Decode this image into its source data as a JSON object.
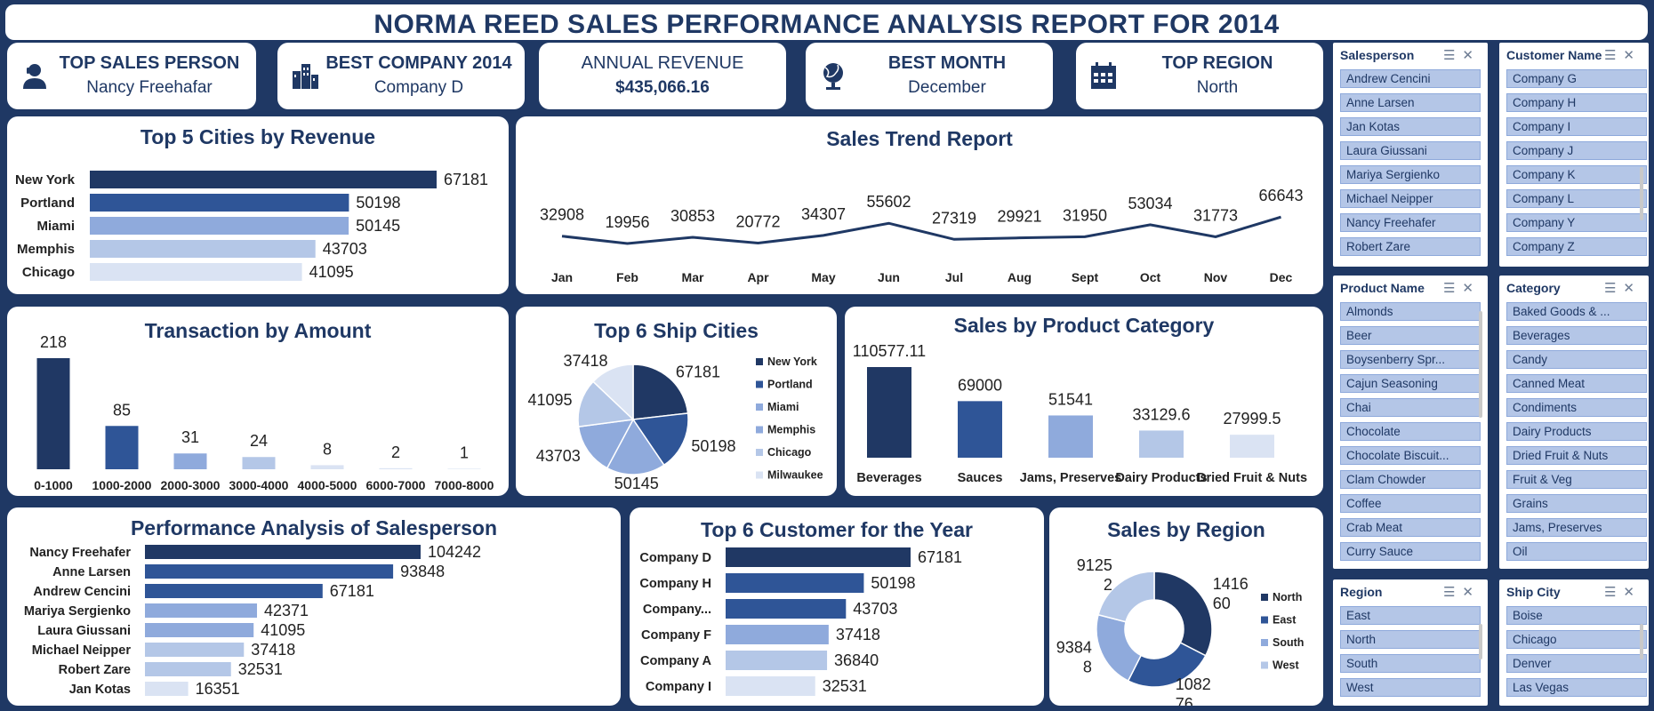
{
  "report_title": "NORMA REED SALES PERFORMANCE ANALYSIS REPORT FOR  2014",
  "kpis": [
    {
      "label": "TOP SALES PERSON",
      "value": "Nancy Freehafar",
      "icon": "person-icon"
    },
    {
      "label": "BEST COMPANY 2014",
      "value": "Company D",
      "icon": "buildings-icon"
    },
    {
      "label": "ANNUAL REVENUE",
      "value": "$435,066.16",
      "icon": ""
    },
    {
      "label": "BEST MONTH",
      "value": "December",
      "icon": "globe-icon"
    },
    {
      "label": "TOP REGION",
      "value": "North",
      "icon": "calendar-icon"
    }
  ],
  "colors": {
    "navy": "#1f3864",
    "s1": "#203864",
    "s2": "#2f5597",
    "s3": "#8faadc",
    "s4": "#b4c7e7",
    "s5": "#dae3f3",
    "slicer_item": "#b4c6e7"
  },
  "chart_data": [
    {
      "id": "cities",
      "type": "bar",
      "orientation": "horizontal",
      "title": "Top 5 Cities by Revenue",
      "categories": [
        "New York",
        "Portland",
        "Miami",
        "Memphis",
        "Chicago"
      ],
      "values": [
        67181,
        50198,
        50145,
        43703,
        41095
      ]
    },
    {
      "id": "trend",
      "type": "line",
      "title": "Sales Trend Report",
      "categories": [
        "Jan",
        "Feb",
        "Mar",
        "Apr",
        "May",
        "Jun",
        "Jul",
        "Aug",
        "Sept",
        "Oct",
        "Nov",
        "Dec"
      ],
      "values": [
        32908,
        19956,
        30853,
        20772,
        34307,
        55602,
        27319,
        29921,
        31950,
        53034,
        31773,
        66643
      ]
    },
    {
      "id": "transactions",
      "type": "bar",
      "title": "Transaction by Amount",
      "categories": [
        "0-1000",
        "1000-2000",
        "2000-3000",
        "3000-4000",
        "4000-5000",
        "6000-7000",
        "7000-8000"
      ],
      "values": [
        218,
        85,
        31,
        24,
        8,
        2,
        1
      ]
    },
    {
      "id": "ship",
      "type": "pie",
      "title": "Top 6 Ship Cities",
      "categories": [
        "New York",
        "Portland",
        "Miami",
        "Memphis",
        "Chicago",
        "Milwaukee"
      ],
      "values": [
        67181,
        50198,
        50145,
        43703,
        41095,
        37418
      ],
      "legend": "right"
    },
    {
      "id": "category",
      "type": "bar",
      "title": "Sales by Product Category",
      "categories": [
        "Beverages",
        "Sauces",
        "Jams, Preserves",
        "Dairy Products",
        "Dried Fruit & Nuts"
      ],
      "values": [
        110577.11,
        69000,
        51541,
        33129.6,
        27999.5
      ]
    },
    {
      "id": "salesperson",
      "type": "bar",
      "orientation": "horizontal",
      "title": "Performance Analysis of Salesperson",
      "categories": [
        "Nancy Freehafer",
        "Anne Larsen",
        "Andrew Cencini",
        "Mariya Sergienko",
        "Laura Giussani",
        "Michael Neipper",
        "Robert Zare",
        "Jan Kotas"
      ],
      "values": [
        104242,
        93848,
        67181,
        42371,
        41095,
        37418,
        32531,
        16351
      ]
    },
    {
      "id": "customers",
      "type": "bar",
      "orientation": "horizontal",
      "title": "Top 6 Customer for the Year",
      "categories": [
        "Company D",
        "Company H",
        "Company...",
        "Company F",
        "Company A",
        "Company I"
      ],
      "values": [
        67181,
        50198,
        43703,
        37418,
        36840,
        32531
      ]
    },
    {
      "id": "region",
      "type": "pie",
      "title": "Sales by Region",
      "categories": [
        "North",
        "East",
        "South",
        "West"
      ],
      "values": [
        141660,
        108276,
        93848,
        91252
      ],
      "value_labels": [
        [
          "1416",
          "60"
        ],
        [
          "1082",
          "76"
        ],
        [
          "9384",
          "8"
        ],
        [
          "9125",
          "2"
        ]
      ],
      "legend": "right"
    }
  ],
  "slicers": [
    {
      "title": "Salesperson",
      "items": [
        "Andrew Cencini",
        "Anne Larsen",
        "Jan Kotas",
        "Laura Giussani",
        "Mariya Sergienko",
        "Michael Neipper",
        "Nancy Freehafer",
        "Robert Zare"
      ]
    },
    {
      "title": "Customer Name",
      "items": [
        "Company G",
        "Company H",
        "Company I",
        "Company J",
        "Company K",
        "Company L",
        "Company Y",
        "Company Z"
      ]
    },
    {
      "title": "Product Name",
      "items": [
        "Almonds",
        "Beer",
        "Boysenberry Spr...",
        "Cajun Seasoning",
        "Chai",
        "Chocolate",
        "Chocolate Biscuit...",
        "Clam Chowder",
        "Coffee",
        "Crab Meat",
        "Curry Sauce"
      ]
    },
    {
      "title": "Category",
      "items": [
        "Baked Goods & ...",
        "Beverages",
        "Candy",
        "Canned Meat",
        "Condiments",
        "Dairy Products",
        "Dried Fruit & Nuts",
        "Fruit & Veg",
        "Grains",
        "Jams, Preserves",
        "Oil"
      ]
    },
    {
      "title": "Region",
      "items": [
        "East",
        "North",
        "South",
        "West"
      ]
    },
    {
      "title": "Ship City",
      "items": [
        "Boise",
        "Chicago",
        "Denver",
        "Las Vegas"
      ]
    }
  ]
}
